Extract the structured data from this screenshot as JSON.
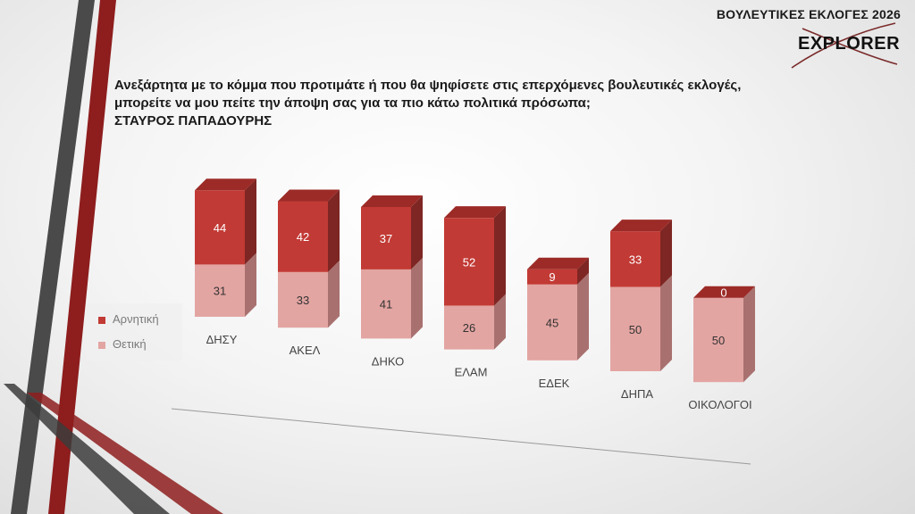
{
  "header": {
    "title": "ΒΟΥΛΕΥΤΙΚΕΣ ΕΚΛΟΓΕΣ 2026",
    "logo_text": "EXPLORER"
  },
  "question": {
    "line1": "Ανεξάρτητα με το κόμμα που προτιμάτε ή που θα ψηφίσετε στις επερχόμενες βουλευτικές εκλογές,",
    "line2": "μπορείτε να μου πείτε την άποψη σας για τα πιο κάτω πολιτικά πρόσωπα;",
    "line3": "ΣΤΑΥΡΟΣ ΠΑΠΑΔΟΥΡΗΣ"
  },
  "colors": {
    "negative": "#c23a35",
    "positive": "#e3a5a2",
    "decor_dark": "#4a4a4a",
    "decor_red": "#8e1d1d"
  },
  "chart_data": {
    "type": "bar",
    "stacked": true,
    "style": "3d",
    "categories": [
      "ΔΗΣΥ",
      "ΑΚΕΛ",
      "ΔΗΚΟ",
      "ΕΛΑΜ",
      "ΕΔΕΚ",
      "ΔΗΠΑ",
      "ΟΙΚΟΛΟΓΟΙ"
    ],
    "series": [
      {
        "name": "Θετική",
        "values": [
          31,
          33,
          41,
          26,
          45,
          50,
          50
        ]
      },
      {
        "name": "Αρνητική",
        "values": [
          44,
          42,
          37,
          52,
          9,
          33,
          0
        ]
      }
    ],
    "legend": [
      "Αρνητική",
      "Θετική"
    ],
    "legend_position": "left",
    "data_labels": true
  }
}
